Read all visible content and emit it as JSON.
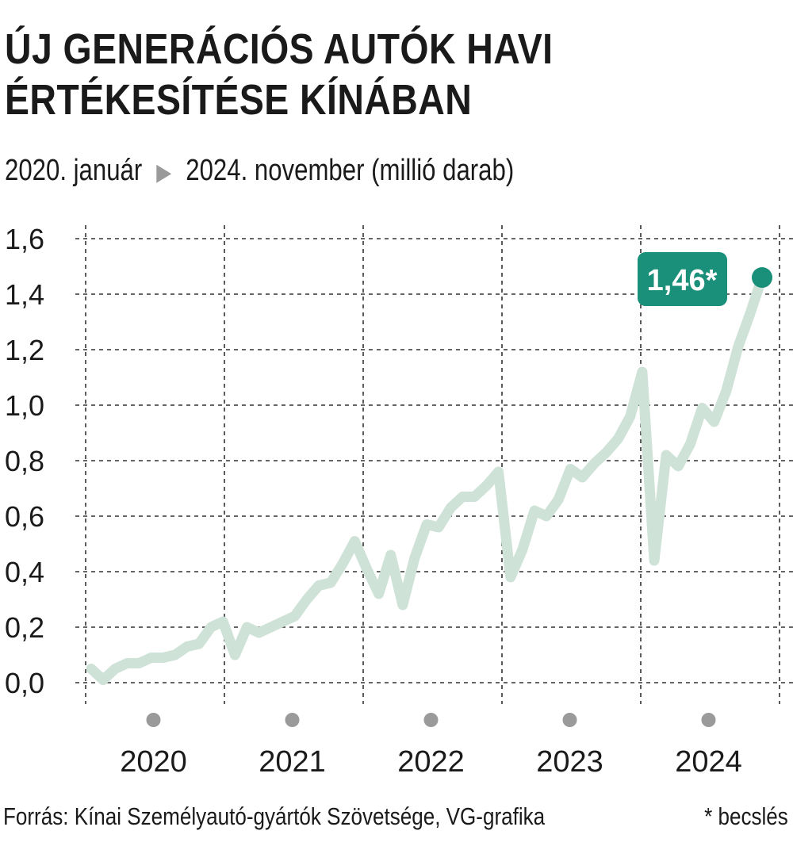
{
  "header": {
    "title_line1": "ÚJ GENERÁCIÓS AUTÓK HAVI",
    "title_line2": "ÉRTÉKESÍTÉSE KÍNÁBAN",
    "subtitle_start": "2020. január",
    "subtitle_end": "2024. november (millió darab)",
    "arrow_icon": "triangle-right-icon"
  },
  "footer": {
    "source": "Forrás: Kínai Személyautó-gyártók Szövetsége, VG-grafika",
    "note": "* becslés"
  },
  "colors": {
    "line": "#cfe2d8",
    "highlight": "#1a8f7a",
    "grid": "#333333",
    "year_dot": "#9a9a9a"
  },
  "chart_data": {
    "type": "line",
    "title": "ÚJ GENERÁCIÓS AUTÓK HAVI ÉRTÉKESÍTÉSE KÍNÁBAN",
    "subtitle": "2020. január ▶ 2024. november (millió darab)",
    "xlabel": "",
    "ylabel": "",
    "ylim": [
      0,
      1.6
    ],
    "yticks": [
      "0,0",
      "0,2",
      "0,4",
      "0,6",
      "0,8",
      "1,0",
      "1,2",
      "1,4",
      "1,6"
    ],
    "ytick_values": [
      0,
      0.2,
      0.4,
      0.6,
      0.8,
      1.0,
      1.2,
      1.4,
      1.6
    ],
    "years": [
      "2020",
      "2021",
      "2022",
      "2023",
      "2024"
    ],
    "grid": true,
    "x_start": "2020-01",
    "x_end": "2024-11",
    "series": [
      {
        "values": [
          0.05,
          0.01,
          0.05,
          0.07,
          0.07,
          0.09,
          0.09,
          0.1,
          0.13,
          0.14,
          0.2,
          0.22,
          0.1,
          0.2,
          0.18,
          0.2,
          0.22,
          0.24,
          0.3,
          0.35,
          0.36,
          0.43,
          0.51,
          0.41,
          0.32,
          0.46,
          0.28,
          0.45,
          0.57,
          0.56,
          0.63,
          0.67,
          0.67,
          0.71,
          0.76,
          0.38,
          0.48,
          0.62,
          0.6,
          0.66,
          0.77,
          0.74,
          0.79,
          0.83,
          0.88,
          0.96,
          1.12,
          0.44,
          0.82,
          0.78,
          0.86,
          0.99,
          0.94,
          1.05,
          1.21,
          1.33,
          1.46
        ]
      }
    ],
    "highlight": {
      "value_label": "1,46*",
      "value": 1.46,
      "x": "2024-11"
    }
  }
}
